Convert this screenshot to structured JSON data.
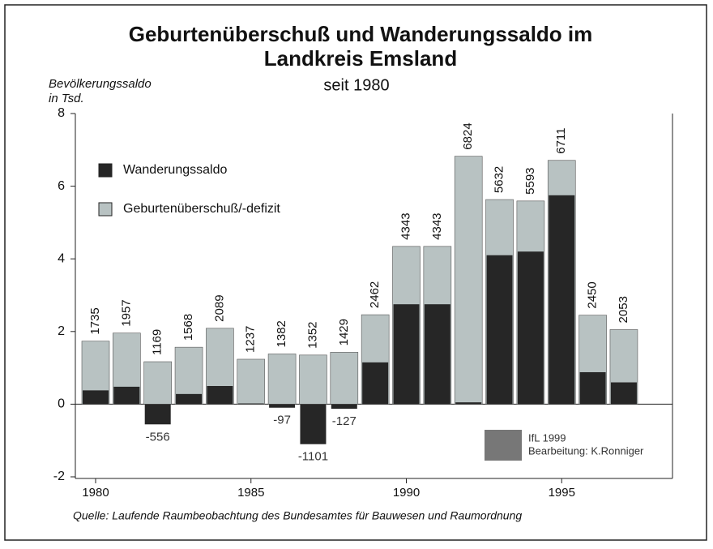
{
  "chart_data": {
    "type": "bar",
    "overlay": true,
    "title": [
      "Geburtenüberschuß und Wanderungssaldo im",
      "Landkreis Emsland"
    ],
    "subtitle": "seit 1980",
    "y_label": [
      "Bevölkerungssaldo",
      "in Tsd."
    ],
    "source": "Quelle: Laufende Raumbeobachtung des Bundesamtes für Bauwesen und Raumordnung",
    "credit": [
      "IfL 1999",
      "Bearbeitung: K.Ronniger"
    ],
    "categories": [
      1980,
      null,
      null,
      null,
      null,
      1985,
      null,
      null,
      null,
      null,
      1990,
      null,
      null,
      null,
      null,
      1995,
      null,
      null
    ],
    "series": [
      {
        "name": "Geburtenüberschuß/-defizit",
        "color": "#b8c2c2",
        "values": [
          1.735,
          1.957,
          1.169,
          1.568,
          2.089,
          1.237,
          1.382,
          1.352,
          1.429,
          2.462,
          4.343,
          4.343,
          6.824,
          5.632,
          5.593,
          6.711,
          2.45,
          2.053
        ],
        "value_labels": [
          "1735",
          "1957",
          "1169",
          "1568",
          "2089",
          "1237",
          "1382",
          "1352",
          "1429",
          "2462",
          "4343",
          "4343",
          "6824",
          "5632",
          "5593",
          "6711",
          "2450",
          "2053"
        ]
      },
      {
        "name": "Wanderungssaldo",
        "color": "#262626",
        "values": [
          0.38,
          0.48,
          -0.556,
          0.28,
          0.5,
          0.02,
          -0.097,
          -1.101,
          -0.127,
          1.15,
          2.75,
          2.75,
          0.05,
          4.1,
          4.2,
          5.75,
          0.88,
          0.6
        ],
        "value_labels": [
          null,
          null,
          "-556",
          null,
          null,
          null,
          "-97",
          "-1101",
          "-127",
          null,
          null,
          null,
          null,
          null,
          null,
          null,
          null,
          null
        ]
      }
    ],
    "ylim": [
      -2,
      8
    ],
    "yticks": [
      -2,
      0,
      2,
      4,
      6,
      8
    ]
  }
}
